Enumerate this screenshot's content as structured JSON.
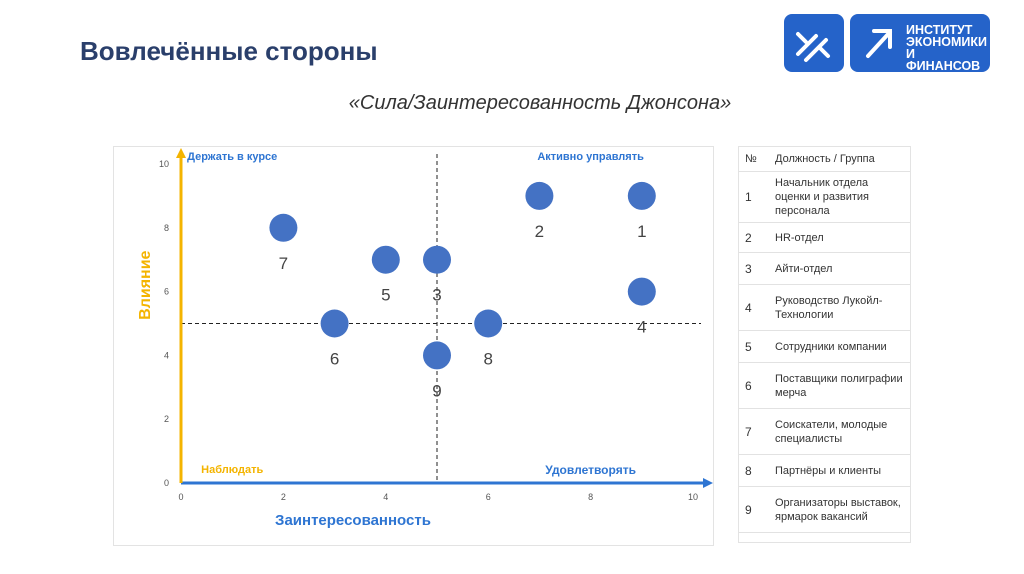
{
  "slide": {
    "title": "Вовлечённые стороны",
    "subtitle": "«Сила/Заинтересованность Джонсона»"
  },
  "logo": {
    "lines": [
      "ИНСТИТУТ",
      "ЭКОНОМИКИ",
      "И ФИНАНСОВ"
    ],
    "color": "#2563c9"
  },
  "chart_data": {
    "type": "scatter",
    "xlabel": "Заинтересованность",
    "ylabel": "Влияние",
    "xlim": [
      0,
      10
    ],
    "ylim": [
      0,
      10
    ],
    "x_ticks": [
      0,
      2,
      4,
      6,
      8,
      10
    ],
    "y_ticks": [
      0,
      2,
      4,
      6,
      8,
      10
    ],
    "quadrant_lines": {
      "x": 5,
      "y": 5
    },
    "quadrant_labels": {
      "top_left": "Держать в курсе",
      "top_right": "Активно управлять",
      "bottom_left": "Наблюдать",
      "bottom_right": "Удовлетворять"
    },
    "points": [
      {
        "label": "1",
        "x": 9,
        "y": 9
      },
      {
        "label": "2",
        "x": 7,
        "y": 9
      },
      {
        "label": "3",
        "x": 5,
        "y": 7
      },
      {
        "label": "4",
        "x": 9,
        "y": 6
      },
      {
        "label": "5",
        "x": 4,
        "y": 7
      },
      {
        "label": "6",
        "x": 3,
        "y": 5
      },
      {
        "label": "7",
        "x": 2,
        "y": 8
      },
      {
        "label": "8",
        "x": 6,
        "y": 5
      },
      {
        "label": "9",
        "x": 5,
        "y": 4
      }
    ],
    "colors": {
      "point": "#4472c4",
      "x_axis": "#2e75d2",
      "y_axis": "#f4b400",
      "label_blue": "#2e75d2",
      "label_yellow": "#f4b400"
    },
    "grid": false
  },
  "table": {
    "headers": [
      "№",
      "Должность / Группа"
    ],
    "rows": [
      [
        "1",
        "Начальник отдела оценки и развития персонала"
      ],
      [
        "2",
        "HR-отдел"
      ],
      [
        "3",
        "Айти-отдел"
      ],
      [
        "4",
        "Руководство Лукойл-Технологии"
      ],
      [
        "5",
        "Сотрудники компании"
      ],
      [
        "6",
        "Поставщики полиграфии мерча"
      ],
      [
        "7",
        "Соискатели, молодые специалисты"
      ],
      [
        "8",
        "Партнёры и клиенты"
      ],
      [
        "9",
        "Организаторы выставок, ярмарок вакансий"
      ]
    ]
  }
}
